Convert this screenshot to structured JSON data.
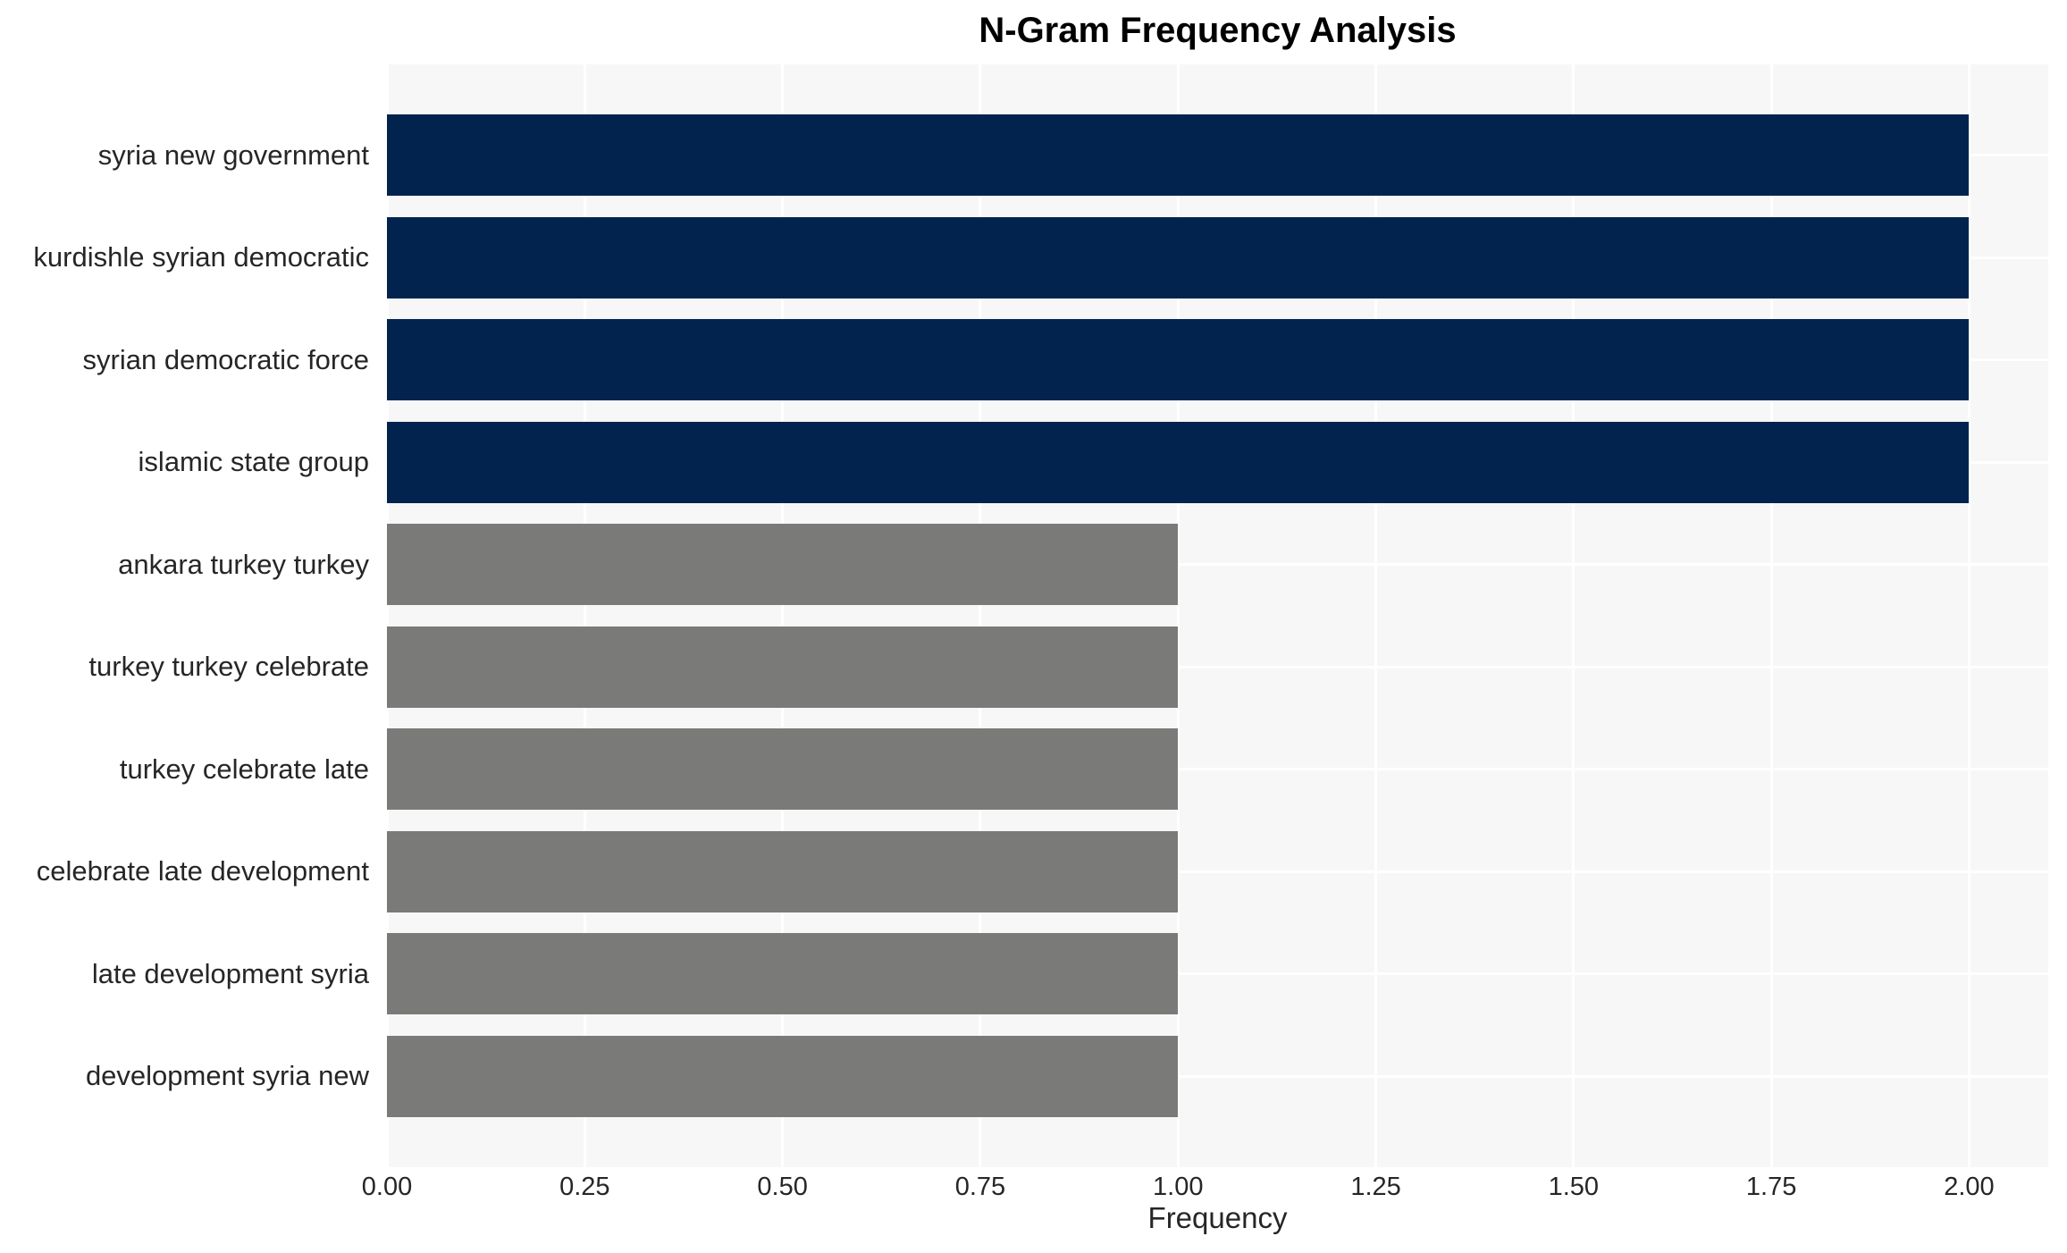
{
  "chart_data": {
    "type": "bar",
    "orientation": "horizontal",
    "title": "N-Gram Frequency Analysis",
    "xlabel": "Frequency",
    "ylabel": "",
    "categories": [
      "syria new government",
      "kurdishle syrian democratic",
      "syrian democratic force",
      "islamic state group",
      "ankara turkey turkey",
      "turkey turkey celebrate",
      "turkey celebrate late",
      "celebrate late development",
      "late development syria",
      "development syria new"
    ],
    "values": [
      2,
      2,
      2,
      2,
      1,
      1,
      1,
      1,
      1,
      1
    ],
    "bar_colors": [
      "#02234E",
      "#02234E",
      "#02234E",
      "#02234E",
      "#7A7A78",
      "#7A7A78",
      "#7A7A78",
      "#7A7A78",
      "#7A7A78",
      "#7A7A78"
    ],
    "xlim": [
      0,
      2.1
    ],
    "xticks": [
      0,
      0.25,
      0.5,
      0.75,
      1.0,
      1.25,
      1.5,
      1.75,
      2.0
    ],
    "xtick_labels": [
      "0.00",
      "0.25",
      "0.50",
      "0.75",
      "1.00",
      "1.25",
      "1.50",
      "1.75",
      "2.00"
    ],
    "grid": true,
    "legend": false,
    "colors": {
      "plot_background": "#F7F7F7",
      "gridline": "#FFFFFF",
      "tick_text": "#262626",
      "title_text": "#000000",
      "high_frequency_bar": "#02234E",
      "low_frequency_bar": "#7A7A78"
    }
  }
}
